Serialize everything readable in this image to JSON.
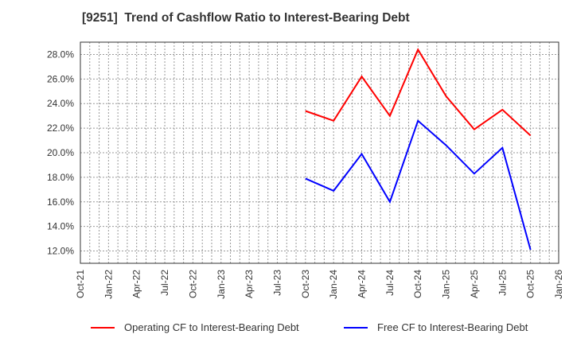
{
  "title": "[9251]  Trend of Cashflow Ratio to Interest-Bearing Debt",
  "colors": {
    "operating": "#ff0000",
    "free": "#0000ff",
    "grid": "#999999",
    "axis": "#333333"
  },
  "legend": {
    "items": [
      {
        "label": "Operating CF to Interest-Bearing Debt",
        "color": "#ff0000"
      },
      {
        "label": "Free CF to Interest-Bearing Debt",
        "color": "#0000ff"
      }
    ]
  },
  "chart_data": {
    "type": "line",
    "title": "[9251]  Trend of Cashflow Ratio to Interest-Bearing Debt",
    "xlabel": "",
    "ylabel": "",
    "ylim": [
      11.0,
      29.0
    ],
    "y_ticks": [
      "12.0%",
      "14.0%",
      "16.0%",
      "18.0%",
      "20.0%",
      "22.0%",
      "24.0%",
      "26.0%",
      "28.0%"
    ],
    "y_tick_values": [
      12,
      14,
      16,
      18,
      20,
      22,
      24,
      26,
      28
    ],
    "x_ticks": [
      "Oct-21",
      "Jan-22",
      "Apr-22",
      "Jul-22",
      "Oct-22",
      "Jan-23",
      "Apr-23",
      "Jul-23",
      "Oct-23",
      "Jan-24",
      "Apr-24",
      "Jul-24",
      "Oct-24",
      "Jan-25",
      "Apr-25",
      "Jul-25",
      "Oct-25",
      "Jan-26"
    ],
    "grid": true,
    "legend_position": "bottom",
    "x": [
      "Oct-23",
      "Jan-24",
      "Apr-24",
      "Jul-24",
      "Oct-24",
      "Jan-25",
      "Apr-25",
      "Jul-25",
      "Oct-25"
    ],
    "series": [
      {
        "name": "Operating CF to Interest-Bearing Debt",
        "color": "#ff0000",
        "values": [
          23.4,
          22.6,
          26.2,
          23.0,
          28.4,
          24.6,
          21.9,
          23.5,
          21.4
        ]
      },
      {
        "name": "Free CF to Interest-Bearing Debt",
        "color": "#0000ff",
        "values": [
          17.9,
          16.9,
          19.9,
          16.0,
          22.6,
          20.6,
          18.3,
          20.4,
          12.1
        ]
      }
    ]
  }
}
